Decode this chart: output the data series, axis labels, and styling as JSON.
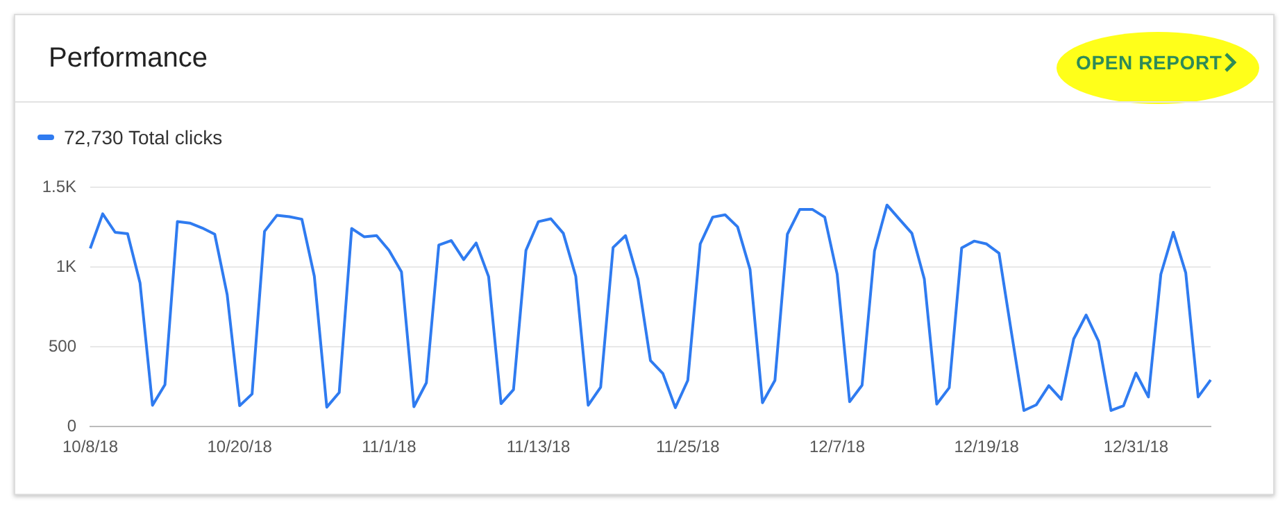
{
  "chart_data": {
    "type": "line",
    "title": "Performance",
    "annotations": [
      "OPEN REPORT"
    ],
    "categories": [
      "10/8/18",
      null,
      null,
      null,
      null,
      null,
      null,
      null,
      null,
      null,
      null,
      null,
      "10/20/18",
      null,
      null,
      null,
      null,
      null,
      null,
      null,
      null,
      null,
      null,
      null,
      "11/1/18",
      null,
      null,
      null,
      null,
      null,
      null,
      null,
      null,
      null,
      null,
      null,
      "11/13/18",
      null,
      null,
      null,
      null,
      null,
      null,
      null,
      null,
      null,
      null,
      null,
      "11/25/18",
      null,
      null,
      null,
      null,
      null,
      null,
      null,
      null,
      null,
      null,
      null,
      "12/7/18",
      null,
      null,
      null,
      null,
      null,
      null,
      null,
      null,
      null,
      null,
      null,
      "12/19/18",
      null,
      null,
      null,
      null,
      null,
      null,
      null,
      null,
      null,
      null,
      null,
      "12/31/18",
      null,
      null,
      null,
      null,
      null,
      null
    ],
    "series": [
      {
        "name": "72,730 Total clicks",
        "color": "#2f7bf0",
        "values": [
          1118,
          1335,
          1219,
          1210,
          901,
          134,
          263,
          1286,
          1277,
          1246,
          1207,
          828,
          131,
          205,
          1225,
          1326,
          1317,
          1301,
          944,
          122,
          214,
          1243,
          1191,
          1198,
          1106,
          971,
          125,
          275,
          1139,
          1167,
          1048,
          1152,
          941,
          144,
          232,
          1106,
          1286,
          1304,
          1213,
          944,
          134,
          247,
          1124,
          1198,
          926,
          415,
          333,
          119,
          290,
          1146,
          1314,
          1329,
          1253,
          987,
          150,
          290,
          1207,
          1363,
          1363,
          1314,
          956,
          156,
          260,
          1103,
          1390,
          1301,
          1213,
          926,
          141,
          244,
          1121,
          1164,
          1146,
          1088,
          590,
          101,
          137,
          257,
          171,
          550,
          700,
          535,
          101,
          131,
          336,
          186,
          956,
          1219,
          965,
          186,
          293
        ]
      }
    ],
    "ylim": [
      0,
      1500
    ],
    "yticks": [
      0,
      500,
      {
        "value": 1000,
        "label": "1K"
      },
      {
        "value": 1500,
        "label": "1.5K"
      }
    ],
    "grid": "y",
    "legend": "top left",
    "marker": "none",
    "line_style": "solid"
  }
}
